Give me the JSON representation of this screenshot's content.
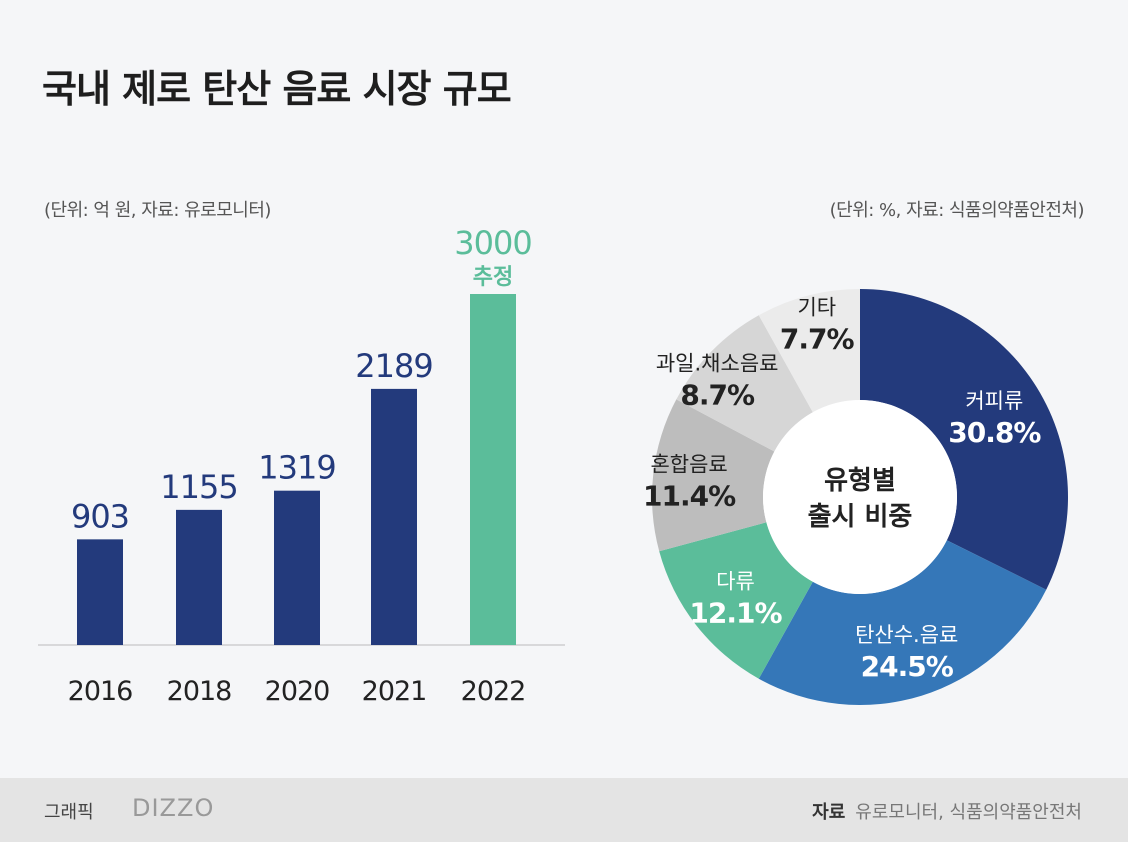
{
  "title": "국내 제로 탄산 음료 시장 규모",
  "chart_data": [
    {
      "type": "bar",
      "unit_note": "(단위: 억 원, 자료: 유로모니터)",
      "categories": [
        "2016",
        "2018",
        "2020",
        "2021",
        "2022"
      ],
      "values": [
        903,
        1155,
        1319,
        2189,
        3000
      ],
      "data_labels": [
        "903",
        "1155",
        "1319",
        "2189",
        "3000"
      ],
      "annotations": {
        "2022": "추정"
      },
      "colors": [
        "#233a7c",
        "#233a7c",
        "#233a7c",
        "#233a7c",
        "#5bbd9a"
      ],
      "ylim": [
        0,
        3000
      ]
    },
    {
      "type": "pie",
      "donut": true,
      "unit_note": "(단위: %, 자료: 식품의약품안전처)",
      "center_label": [
        "유형별",
        "출시 비중"
      ],
      "slices": [
        {
          "label": "커피류",
          "value": 30.8,
          "text": "30.8%",
          "color": "#233a7c",
          "text_color": "#ffffff"
        },
        {
          "label": "탄산수.음료",
          "value": 24.5,
          "text": "24.5%",
          "color": "#3577b8",
          "text_color": "#ffffff"
        },
        {
          "label": "다류",
          "value": 12.1,
          "text": "12.1%",
          "color": "#5bbd9a",
          "text_color": "#ffffff"
        },
        {
          "label": "혼합음료",
          "value": 11.4,
          "text": "11.4%",
          "color": "#bdbdbd",
          "text_color": "#222222"
        },
        {
          "label": "과일.채소음료",
          "value": 8.7,
          "text": "8.7%",
          "color": "#d6d6d6",
          "text_color": "#222222"
        },
        {
          "label": "기타",
          "value": 7.7,
          "text": "7.7%",
          "color": "#ebebeb",
          "text_color": "#222222"
        }
      ]
    }
  ],
  "footer": {
    "credit": "그래픽",
    "logo": "DIZZO",
    "source_label": "자료",
    "source": "유로모니터, 식품의약품안전처"
  }
}
